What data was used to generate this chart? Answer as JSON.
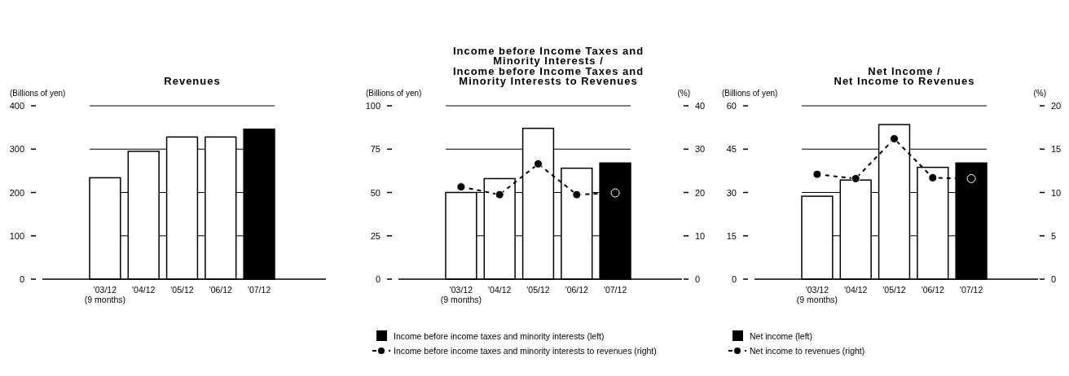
{
  "chart_data": [
    {
      "type": "bar",
      "title": "Revenues",
      "ylabel": "(Billions of yen)",
      "categories": [
        "'03/12 (9 months)",
        "'04/12",
        "'05/12",
        "'06/12",
        "'07/12"
      ],
      "values": [
        234,
        295,
        328,
        328,
        346
      ],
      "colors": [
        "#ffffff",
        "#ffffff",
        "#ffffff",
        "#ffffff",
        "#000000"
      ],
      "ylim": [
        0,
        400
      ],
      "yticks": [
        0,
        100,
        200,
        300,
        400
      ],
      "grid": "y"
    },
    {
      "type": "bar",
      "title": "Income before Income Taxes and Minority Interests / Income before Income Taxes and Minority Interests to Revenues",
      "ylabel": "(Billions of yen)",
      "y2label": "(%)",
      "categories": [
        "'03/12 (9 months)",
        "'04/12",
        "'05/12",
        "'06/12",
        "'07/12"
      ],
      "series": [
        {
          "name": "Income before income taxes and minority interests (left)",
          "type": "bar",
          "colors": [
            "#ffffff",
            "#ffffff",
            "#ffffff",
            "#ffffff",
            "#000000"
          ],
          "values": [
            50,
            58,
            87,
            64,
            67
          ]
        },
        {
          "name": "Income before income taxes and minority interests to revenues (right)",
          "type": "line",
          "axis": "y2",
          "color": "#000000",
          "marker": "circle",
          "line_style": "dashed",
          "values": [
            21.3,
            19.5,
            26.6,
            19.5,
            19.9
          ]
        }
      ],
      "ylim": [
        0,
        100
      ],
      "yticks": [
        0,
        25,
        50,
        75,
        100
      ],
      "y2lim": [
        0,
        40
      ],
      "y2ticks": [
        0,
        10,
        20,
        30,
        40
      ],
      "grid": "y",
      "legend": "bottom left"
    },
    {
      "type": "bar",
      "title": "Net Income / Net Income to Revenues",
      "ylabel": "(Billions of yen)",
      "y2label": "(%)",
      "categories": [
        "'03/12 (9 months)",
        "'04/12",
        "'05/12",
        "'06/12",
        "'07/12"
      ],
      "series": [
        {
          "name": "Net income (left)",
          "type": "bar",
          "colors": [
            "#ffffff",
            "#ffffff",
            "#ffffff",
            "#ffffff",
            "#000000"
          ],
          "values": [
            28.7,
            34.3,
            53.5,
            38.7,
            40.2
          ]
        },
        {
          "name": "Net income to revenues (right)",
          "type": "line",
          "axis": "y2",
          "color": "#000000",
          "marker": "circle",
          "line_style": "dashed",
          "values": [
            12.1,
            11.6,
            16.2,
            11.7,
            11.6
          ]
        }
      ],
      "ylim": [
        0,
        60
      ],
      "yticks": [
        0,
        15,
        30,
        45,
        60
      ],
      "y2lim": [
        0,
        20
      ],
      "y2ticks": [
        0,
        5,
        10,
        15,
        20
      ],
      "grid": "y",
      "legend": "bottom left"
    }
  ]
}
